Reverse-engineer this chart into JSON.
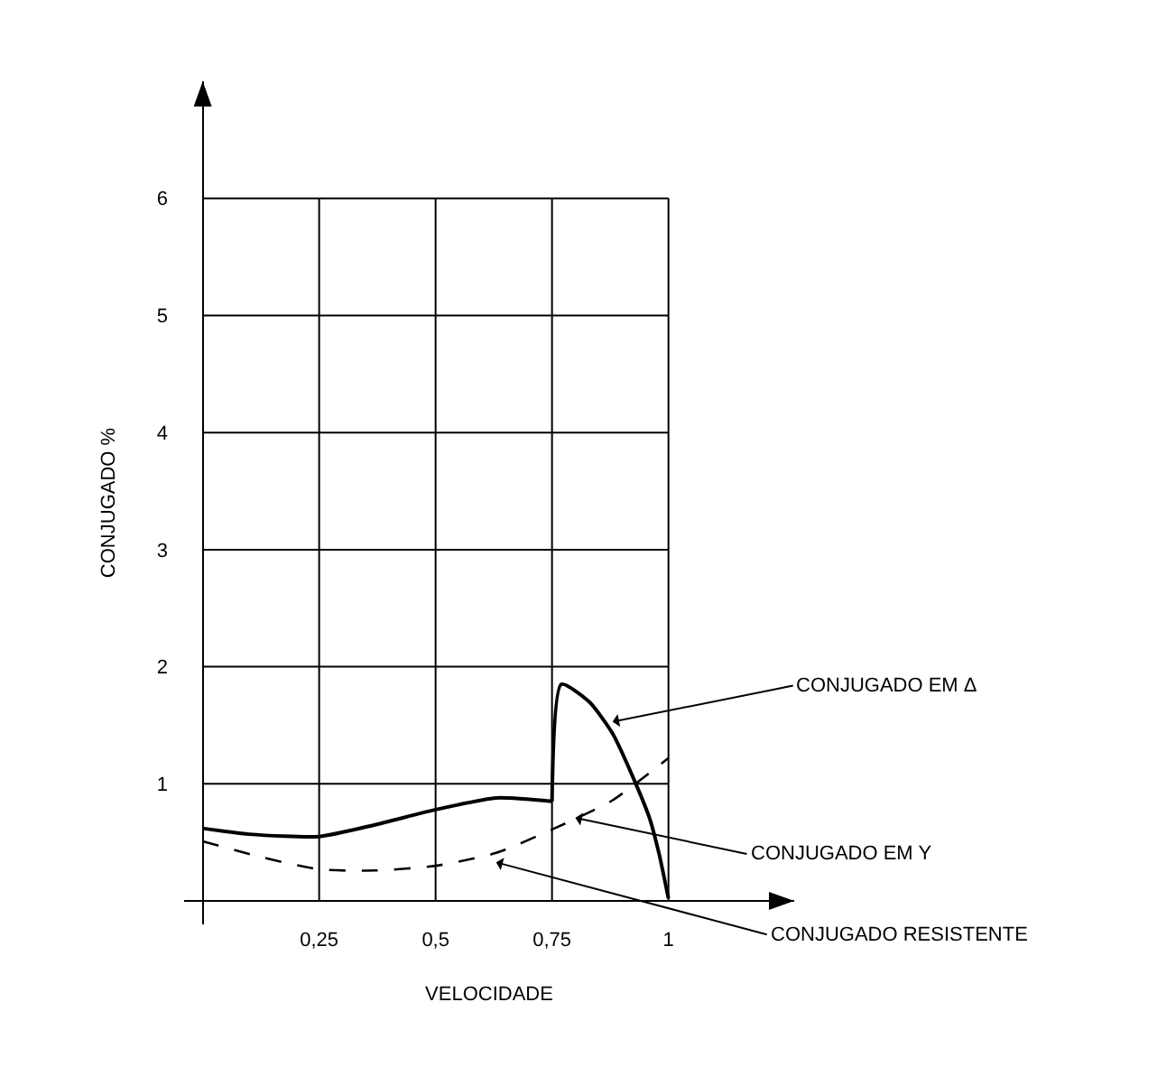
{
  "chart_data": {
    "type": "line",
    "xlabel": "VELOCIDADE",
    "ylabel": "CONJUGADO %",
    "xlim": [
      -0.04,
      1.27
    ],
    "ylim": [
      -0.2,
      7
    ],
    "xticks": [
      {
        "value": 0.25,
        "label": "0,25"
      },
      {
        "value": 0.5,
        "label": "0,5"
      },
      {
        "value": 0.75,
        "label": "0,75"
      },
      {
        "value": 1,
        "label": "1"
      }
    ],
    "yticks": [
      1,
      2,
      3,
      4,
      5,
      6
    ],
    "grid": true,
    "marker": "none",
    "series": [
      {
        "color": "#000000",
        "line_style": "solid",
        "x": [
          0,
          0.1,
          0.25,
          0.37,
          0.5,
          0.63,
          0.75
        ],
        "values": [
          0.62,
          0.57,
          0.55,
          0.65,
          0.78,
          0.88,
          0.85
        ]
      },
      {
        "color": "#000000",
        "line_style": "solid",
        "x": [
          0.75,
          0.77,
          0.83,
          0.88,
          0.93,
          0.96,
          0.98,
          1
        ],
        "values": [
          0.85,
          1.85,
          1.7,
          1.43,
          1.0,
          0.7,
          0.4,
          0.02
        ]
      },
      {
        "color": "#000000",
        "line_style": "dashed",
        "x": [
          0,
          0.12,
          0.25,
          0.37,
          0.5,
          0.63,
          0.75,
          0.88,
          1
        ],
        "values": [
          0.51,
          0.38,
          0.27,
          0.26,
          0.3,
          0.41,
          0.61,
          0.86,
          1.22
        ]
      }
    ],
    "annotations": [
      {
        "text": "CONJUGADO EM Δ",
        "x": 0.88,
        "y": 1.53
      },
      {
        "text": "CONJUGADO EM Y",
        "x": 0.8,
        "y": 0.71
      },
      {
        "text": "CONJUGADO RESISTENTE",
        "x": 0.63,
        "y": 0.33
      }
    ]
  }
}
